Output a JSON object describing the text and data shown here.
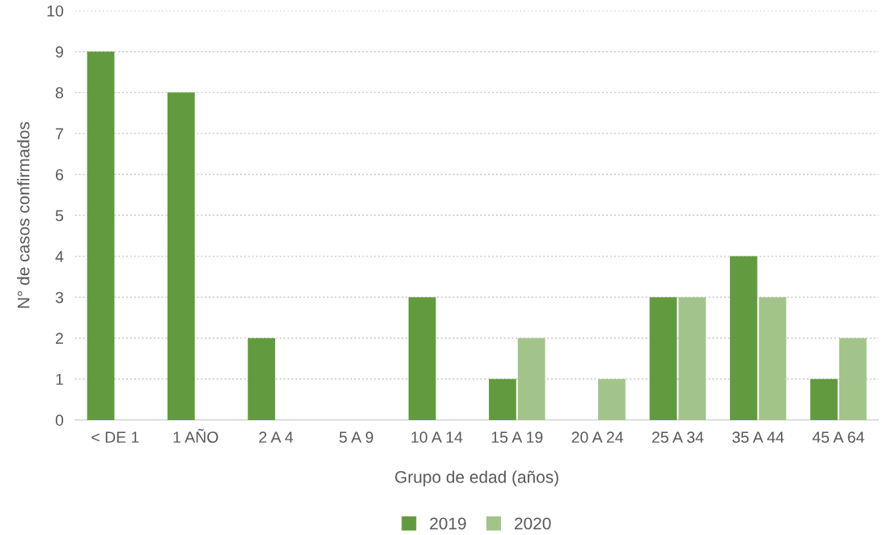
{
  "chart_data": {
    "type": "bar",
    "xlabel": "Grupo de edad (años)",
    "ylabel": "N° de casos confirmados",
    "categories": [
      "< DE 1",
      "1 AÑO",
      "2 A 4",
      "5 A 9",
      "10 A 14",
      "15 A 19",
      "20 A 24",
      "25 A 34",
      "35 A 44",
      "45 A 64"
    ],
    "series": [
      {
        "name": "2019",
        "color": "#629b3f",
        "values": [
          9,
          8,
          2,
          0,
          3,
          1,
          0,
          3,
          4,
          1
        ]
      },
      {
        "name": "2020",
        "color": "#a2c48a",
        "values": [
          0,
          0,
          0,
          0,
          0,
          2,
          1,
          3,
          3,
          2
        ]
      }
    ],
    "ylim": [
      0,
      10
    ],
    "yticks": [
      0,
      1,
      2,
      3,
      4,
      5,
      6,
      7,
      8,
      9,
      10
    ],
    "grid": "y",
    "legend": "bottom"
  }
}
